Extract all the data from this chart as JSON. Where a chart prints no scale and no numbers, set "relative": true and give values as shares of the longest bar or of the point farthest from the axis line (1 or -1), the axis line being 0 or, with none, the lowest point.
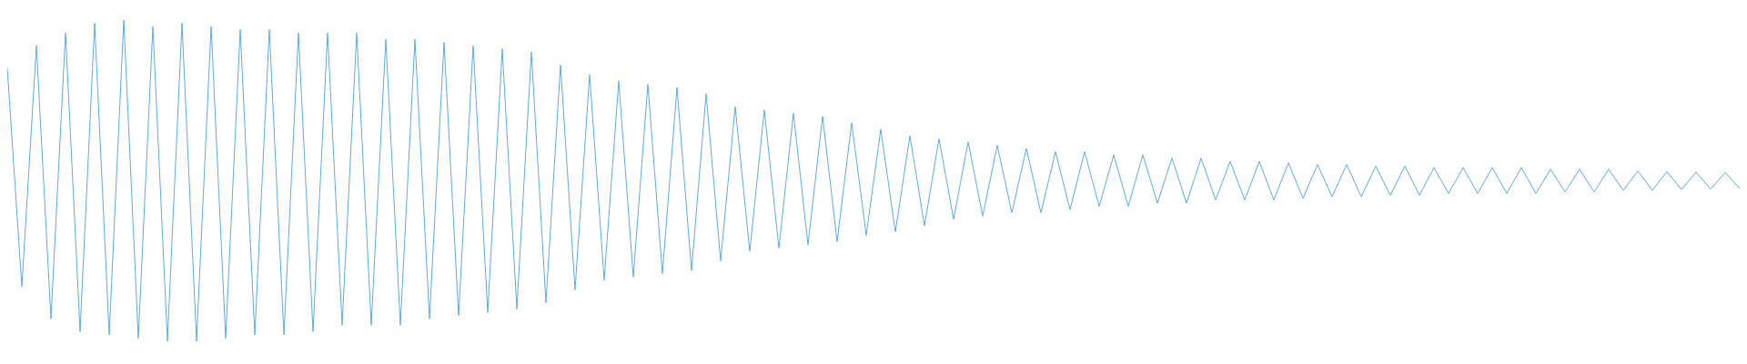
{
  "chart_data": {
    "type": "line",
    "relative": true,
    "marker": "none",
    "categories": [
      null,
      null,
      null,
      null,
      null,
      null,
      null,
      null,
      null,
      null,
      null,
      null,
      null,
      null,
      null,
      null,
      null,
      null,
      null,
      null,
      null,
      null,
      null,
      null,
      null,
      null,
      null,
      null,
      null,
      null,
      null,
      null,
      null,
      null,
      null,
      null,
      null,
      null,
      null,
      null,
      null,
      null,
      null,
      null,
      null,
      null,
      null,
      null,
      null,
      null,
      null,
      null,
      null,
      null,
      null,
      null,
      null,
      null,
      null,
      null,
      null,
      null,
      null,
      null,
      null,
      null,
      null,
      null,
      null,
      null,
      null,
      null,
      null,
      null,
      null,
      null,
      null,
      null,
      null,
      null,
      null,
      null,
      null,
      null,
      null,
      null,
      null,
      null,
      null,
      null,
      null,
      null,
      null,
      null,
      null,
      null,
      null,
      null,
      null,
      null,
      null,
      null,
      null,
      null,
      null,
      null,
      null,
      null,
      null,
      null,
      null,
      null,
      null,
      null,
      null,
      null,
      null,
      null,
      null,
      null
    ],
    "series": [
      {
        "color": "#5dade2",
        "values": [
          0.85,
          0.17,
          0.92,
          0.07,
          0.96,
          0.03,
          0.99,
          0.02,
          1,
          0.01,
          0.98,
          0,
          0.99,
          0,
          0.98,
          0.01,
          0.97,
          0.02,
          0.97,
          0.02,
          0.96,
          0.03,
          0.96,
          0.05,
          0.96,
          0.05,
          0.94,
          0.05,
          0.94,
          0.07,
          0.93,
          0.08,
          0.92,
          0.09,
          0.91,
          0.1,
          0.9,
          0.12,
          0.86,
          0.16,
          0.83,
          0.19,
          0.81,
          0.2,
          0.8,
          0.21,
          0.79,
          0.22,
          0.77,
          0.25,
          0.73,
          0.28,
          0.72,
          0.29,
          0.71,
          0.3,
          0.7,
          0.31,
          0.68,
          0.33,
          0.66,
          0.34,
          0.64,
          0.36,
          0.63,
          0.38,
          0.62,
          0.39,
          0.61,
          0.4,
          0.6,
          0.4,
          0.59,
          0.41,
          0.59,
          0.42,
          0.58,
          0.42,
          0.58,
          0.43,
          0.57,
          0.43,
          0.57,
          0.44,
          0.56,
          0.44,
          0.56,
          0.44,
          0.555,
          0.445,
          0.55,
          0.45,
          0.55,
          0.45,
          0.545,
          0.455,
          0.545,
          0.455,
          0.54,
          0.46,
          0.54,
          0.46,
          0.54,
          0.46,
          0.54,
          0.46,
          0.535,
          0.465,
          0.535,
          0.465,
          0.535,
          0.47,
          0.53,
          0.47,
          0.528,
          0.472,
          0.526,
          0.474,
          0.525,
          0.476
        ]
      }
    ]
  }
}
